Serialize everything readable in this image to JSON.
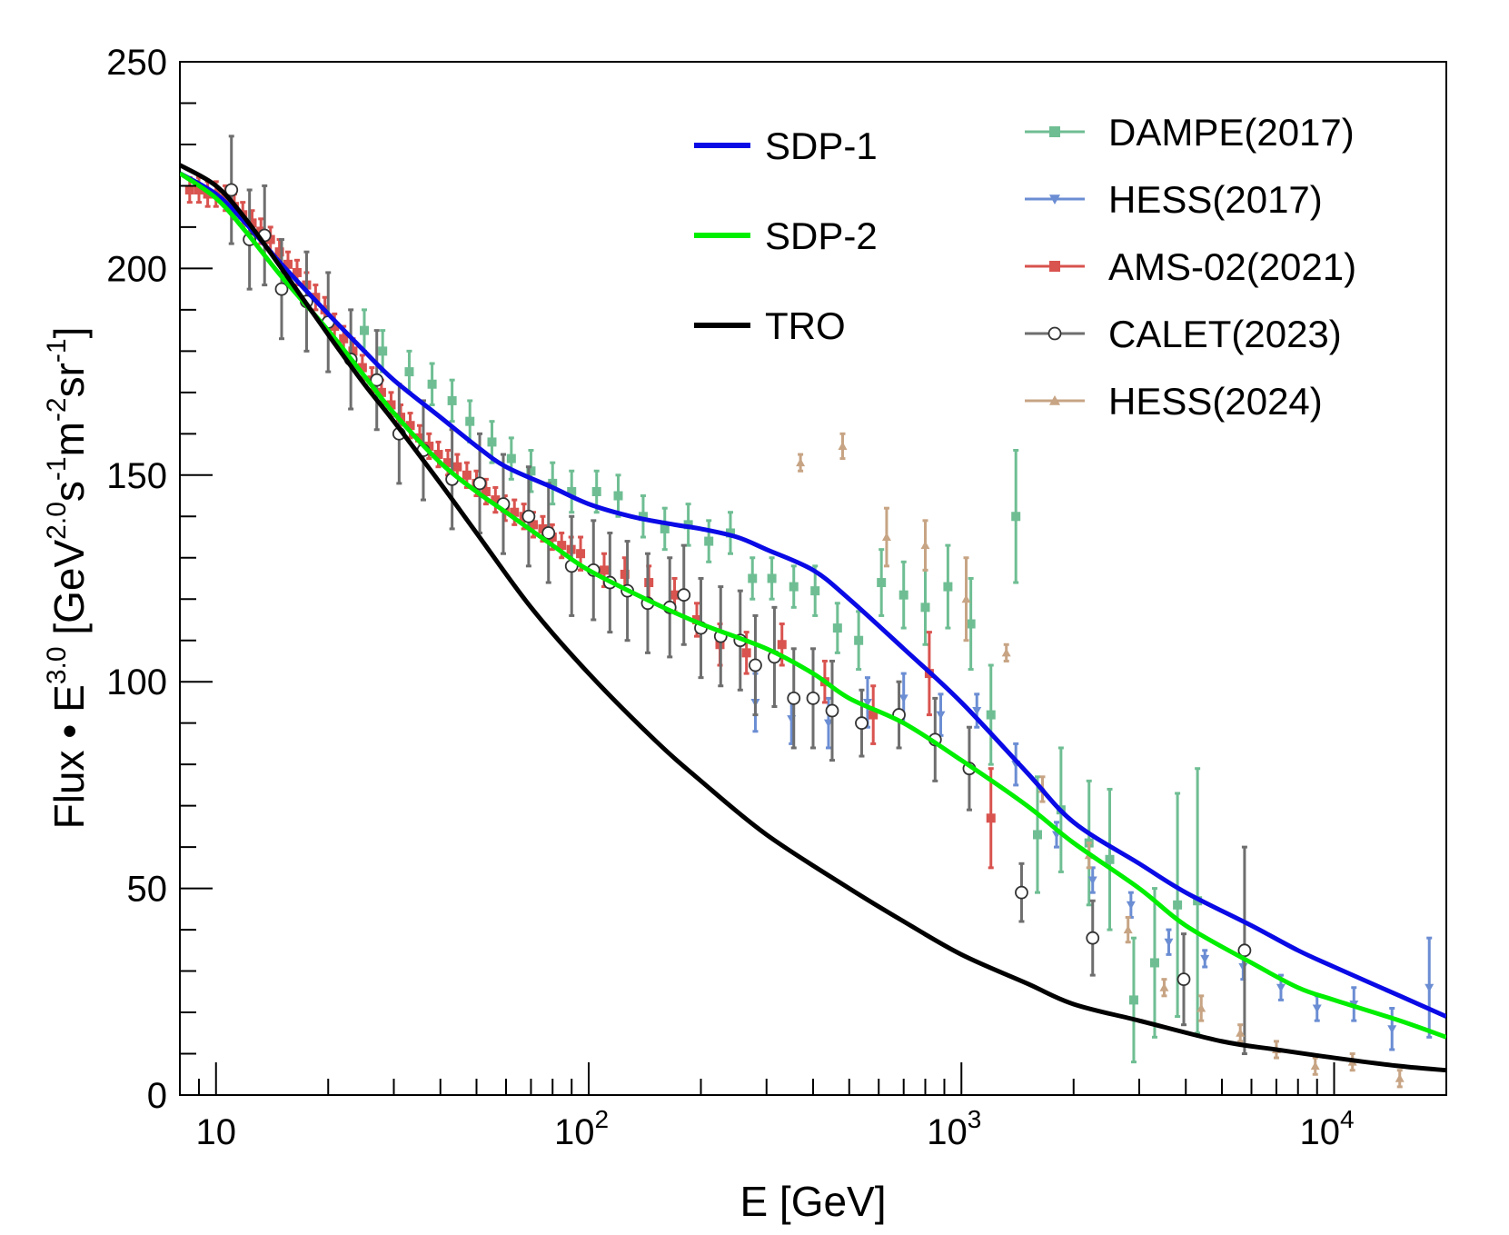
{
  "chart_data": {
    "type": "scatter",
    "xlabel": "E [GeV]",
    "ylabel_parts": {
      "prefix": "Flux • E",
      "exp1": "3.0",
      "bracket_open": " [GeV",
      "exp2": "2.0",
      "s": "s",
      "exp3": "-1",
      "m": "m",
      "exp4": "-2",
      "sr": "sr",
      "exp5": "-1",
      "bracket_close": "]"
    },
    "xscale": "log",
    "xlim": [
      8,
      20000
    ],
    "ylim": [
      0,
      250
    ],
    "grid": false,
    "legend_position": "top-right",
    "y_ticks": [
      "0",
      "50",
      "100",
      "150",
      "200",
      "250"
    ],
    "x_ticks": [
      {
        "base": "10",
        "exp": ""
      },
      {
        "base": "10",
        "exp": "2"
      },
      {
        "base": "10",
        "exp": "3"
      },
      {
        "base": "10",
        "exp": "4"
      }
    ],
    "curves": [
      {
        "name": "SDP-1",
        "color": "#0a0ae6",
        "points": [
          [
            8,
            223
          ],
          [
            10,
            218
          ],
          [
            12,
            211
          ],
          [
            15,
            201
          ],
          [
            20,
            189
          ],
          [
            25,
            180
          ],
          [
            30,
            173
          ],
          [
            40,
            164
          ],
          [
            50,
            157
          ],
          [
            60,
            152
          ],
          [
            80,
            147
          ],
          [
            100,
            143
          ],
          [
            130,
            140
          ],
          [
            170,
            138
          ],
          [
            200,
            137
          ],
          [
            250,
            135
          ],
          [
            300,
            132
          ],
          [
            400,
            127
          ],
          [
            500,
            120
          ],
          [
            700,
            108
          ],
          [
            1000,
            95
          ],
          [
            1500,
            78
          ],
          [
            2000,
            66
          ],
          [
            3000,
            56
          ],
          [
            4000,
            49
          ],
          [
            6000,
            41
          ],
          [
            8000,
            35
          ],
          [
            10000,
            31
          ],
          [
            15000,
            24
          ],
          [
            20000,
            19
          ]
        ]
      },
      {
        "name": "SDP-2",
        "color": "#00ee00",
        "points": [
          [
            8,
            223
          ],
          [
            10,
            217
          ],
          [
            12,
            209
          ],
          [
            15,
            198
          ],
          [
            20,
            185
          ],
          [
            25,
            174
          ],
          [
            30,
            165
          ],
          [
            40,
            153
          ],
          [
            50,
            146
          ],
          [
            60,
            141
          ],
          [
            80,
            133
          ],
          [
            100,
            127
          ],
          [
            150,
            119
          ],
          [
            200,
            114
          ],
          [
            300,
            108
          ],
          [
            400,
            102
          ],
          [
            500,
            96
          ],
          [
            700,
            90
          ],
          [
            1000,
            81
          ],
          [
            1500,
            70
          ],
          [
            2000,
            61
          ],
          [
            3000,
            50
          ],
          [
            4000,
            41
          ],
          [
            6000,
            32
          ],
          [
            8000,
            26
          ],
          [
            10000,
            23
          ],
          [
            15000,
            18
          ],
          [
            20000,
            14
          ]
        ]
      },
      {
        "name": "TRO",
        "color": "#000000",
        "points": [
          [
            8,
            225
          ],
          [
            10,
            220
          ],
          [
            12,
            212
          ],
          [
            15,
            200
          ],
          [
            20,
            184
          ],
          [
            25,
            172
          ],
          [
            30,
            163
          ],
          [
            40,
            148
          ],
          [
            50,
            136
          ],
          [
            70,
            118
          ],
          [
            100,
            102
          ],
          [
            150,
            86
          ],
          [
            200,
            76
          ],
          [
            300,
            63
          ],
          [
            500,
            50
          ],
          [
            700,
            42
          ],
          [
            1000,
            34
          ],
          [
            1500,
            27
          ],
          [
            2000,
            22
          ],
          [
            3000,
            18
          ],
          [
            5000,
            13
          ],
          [
            7000,
            11
          ],
          [
            10000,
            9
          ],
          [
            15000,
            7
          ],
          [
            20000,
            6
          ]
        ]
      }
    ],
    "series": [
      {
        "name": "DAMPE(2017)",
        "color": "#6fbe93",
        "marker": "square",
        "points": [
          [
            25,
            185,
            5
          ],
          [
            28,
            180,
            5
          ],
          [
            33,
            175,
            5
          ],
          [
            38,
            172,
            5
          ],
          [
            43,
            168,
            5
          ],
          [
            48,
            163,
            5
          ],
          [
            55,
            158,
            5
          ],
          [
            62,
            154,
            5
          ],
          [
            70,
            151,
            5
          ],
          [
            80,
            148,
            5
          ],
          [
            90,
            146,
            5
          ],
          [
            105,
            146,
            5
          ],
          [
            120,
            145,
            5
          ],
          [
            140,
            140,
            5
          ],
          [
            160,
            137,
            5
          ],
          [
            185,
            138,
            5
          ],
          [
            210,
            134,
            5
          ],
          [
            240,
            136,
            5
          ],
          [
            275,
            125,
            5
          ],
          [
            310,
            125,
            5
          ],
          [
            355,
            123,
            5
          ],
          [
            405,
            122,
            6
          ],
          [
            465,
            113,
            6
          ],
          [
            530,
            110,
            7
          ],
          [
            610,
            124,
            8
          ],
          [
            700,
            121,
            8
          ],
          [
            800,
            118,
            9
          ],
          [
            920,
            123,
            10
          ],
          [
            1060,
            114,
            11
          ],
          [
            1200,
            92,
            12
          ],
          [
            1400,
            140,
            16
          ],
          [
            1600,
            63,
            14
          ],
          [
            1850,
            69,
            15
          ],
          [
            2200,
            61,
            15
          ],
          [
            2500,
            57,
            17
          ],
          [
            2900,
            23,
            15
          ],
          [
            3300,
            32,
            18
          ],
          [
            3800,
            46,
            27
          ],
          [
            4300,
            47,
            32
          ]
        ]
      },
      {
        "name": "HESS(2017)",
        "color": "#6b8dd3",
        "marker": "triangle-down",
        "points": [
          [
            280,
            95,
            7
          ],
          [
            350,
            91,
            6
          ],
          [
            440,
            90,
            6
          ],
          [
            560,
            95,
            6
          ],
          [
            700,
            96,
            6
          ],
          [
            880,
            92,
            5
          ],
          [
            1100,
            93,
            4
          ],
          [
            1400,
            80,
            5
          ],
          [
            1800,
            63,
            3
          ],
          [
            2250,
            52,
            3
          ],
          [
            2850,
            46,
            3
          ],
          [
            3600,
            37,
            3
          ],
          [
            4500,
            33,
            2
          ],
          [
            5700,
            31,
            3
          ],
          [
            7200,
            26,
            3
          ],
          [
            9000,
            21,
            3
          ],
          [
            11300,
            22,
            4
          ],
          [
            14300,
            16,
            5
          ],
          [
            18000,
            26,
            12
          ]
        ]
      },
      {
        "name": "AMS-02(2021)",
        "color": "#d9534f",
        "marker": "square",
        "points": [
          [
            8.5,
            219,
            3
          ],
          [
            9.0,
            219,
            3
          ],
          [
            9.5,
            218,
            3
          ],
          [
            10.0,
            218,
            3
          ],
          [
            10.6,
            217,
            3
          ],
          [
            11.2,
            215,
            3
          ],
          [
            11.8,
            213,
            3
          ],
          [
            12.5,
            211,
            3
          ],
          [
            13.2,
            209,
            3
          ],
          [
            14.0,
            207,
            3
          ],
          [
            14.8,
            204,
            3
          ],
          [
            15.6,
            201,
            3
          ],
          [
            16.5,
            199,
            3
          ],
          [
            17.5,
            196,
            3
          ],
          [
            18.5,
            193,
            3
          ],
          [
            19.6,
            190,
            3
          ],
          [
            20.8,
            186,
            3
          ],
          [
            22.0,
            183,
            3
          ],
          [
            23.3,
            180,
            3
          ],
          [
            24.7,
            176,
            3
          ],
          [
            26.2,
            173,
            3
          ],
          [
            27.8,
            170,
            3
          ],
          [
            29.5,
            167,
            3
          ],
          [
            31.3,
            164,
            3
          ],
          [
            33.2,
            162,
            3
          ],
          [
            35.2,
            159,
            3
          ],
          [
            37.3,
            157,
            3
          ],
          [
            39.5,
            155,
            3
          ],
          [
            41.9,
            153,
            3
          ],
          [
            44.4,
            152,
            3
          ],
          [
            47.1,
            150,
            3
          ],
          [
            50.0,
            148,
            3
          ],
          [
            53.0,
            146,
            3
          ],
          [
            56.2,
            144,
            3
          ],
          [
            59.6,
            142,
            3
          ],
          [
            63.2,
            141,
            3
          ],
          [
            67.0,
            140,
            3
          ],
          [
            71.0,
            138,
            3
          ],
          [
            75.3,
            137,
            3
          ],
          [
            79.8,
            135,
            3
          ],
          [
            84.6,
            133,
            3
          ],
          [
            89.7,
            132,
            3
          ],
          [
            95.1,
            131,
            4
          ],
          [
            110,
            127,
            4
          ],
          [
            125,
            126,
            4
          ],
          [
            145,
            124,
            4
          ],
          [
            170,
            121,
            4
          ],
          [
            195,
            115,
            4
          ],
          [
            225,
            109,
            5
          ],
          [
            265,
            107,
            5
          ],
          [
            330,
            109,
            5
          ],
          [
            430,
            100,
            5
          ],
          [
            580,
            92,
            7
          ],
          [
            820,
            102,
            10
          ],
          [
            1200,
            67,
            12
          ]
        ]
      },
      {
        "name": "CALET(2023)",
        "color": "#6e6e6e",
        "marker": "circle-open",
        "points": [
          [
            11,
            219,
            13
          ],
          [
            12.3,
            207,
            12
          ],
          [
            13.5,
            208,
            12
          ],
          [
            15,
            195,
            12
          ],
          [
            17.5,
            192,
            12
          ],
          [
            20,
            187,
            12
          ],
          [
            23,
            178,
            12
          ],
          [
            27,
            173,
            12
          ],
          [
            31,
            160,
            12
          ],
          [
            36,
            156,
            12
          ],
          [
            43,
            149,
            12
          ],
          [
            51,
            148,
            12
          ],
          [
            59,
            143,
            12
          ],
          [
            69,
            140,
            12
          ],
          [
            78,
            136,
            12
          ],
          [
            90,
            128,
            12
          ],
          [
            103,
            127,
            12
          ],
          [
            114,
            124,
            12
          ],
          [
            127,
            122,
            12
          ],
          [
            144,
            119,
            12
          ],
          [
            165,
            118,
            12
          ],
          [
            180,
            121,
            12
          ],
          [
            200,
            113,
            12
          ],
          [
            226,
            111,
            12
          ],
          [
            255,
            110,
            12
          ],
          [
            280,
            104,
            12
          ],
          [
            315,
            106,
            12
          ],
          [
            355,
            96,
            12
          ],
          [
            400,
            96,
            12
          ],
          [
            450,
            93,
            12
          ],
          [
            540,
            90,
            8
          ],
          [
            680,
            92,
            8
          ],
          [
            850,
            86,
            10
          ],
          [
            1050,
            79,
            10
          ],
          [
            1450,
            49,
            7
          ],
          [
            2250,
            38,
            9
          ],
          [
            3950,
            28,
            11
          ],
          [
            5750,
            35,
            25
          ]
        ]
      },
      {
        "name": "HESS(2024)",
        "color": "#c7a484",
        "marker": "triangle-up",
        "points": [
          [
            370,
            153,
            2
          ],
          [
            480,
            157,
            3
          ],
          [
            630,
            135,
            7
          ],
          [
            800,
            133,
            6
          ],
          [
            1030,
            120,
            10
          ],
          [
            1320,
            107,
            2
          ],
          [
            1650,
            74,
            3
          ],
          [
            2200,
            58,
            3
          ],
          [
            2800,
            40,
            3
          ],
          [
            3500,
            26,
            2
          ],
          [
            4400,
            21,
            3
          ],
          [
            5600,
            15,
            2
          ],
          [
            7000,
            11,
            2
          ],
          [
            8900,
            7,
            2
          ],
          [
            11200,
            8,
            2
          ],
          [
            15000,
            4,
            2
          ]
        ]
      }
    ]
  }
}
